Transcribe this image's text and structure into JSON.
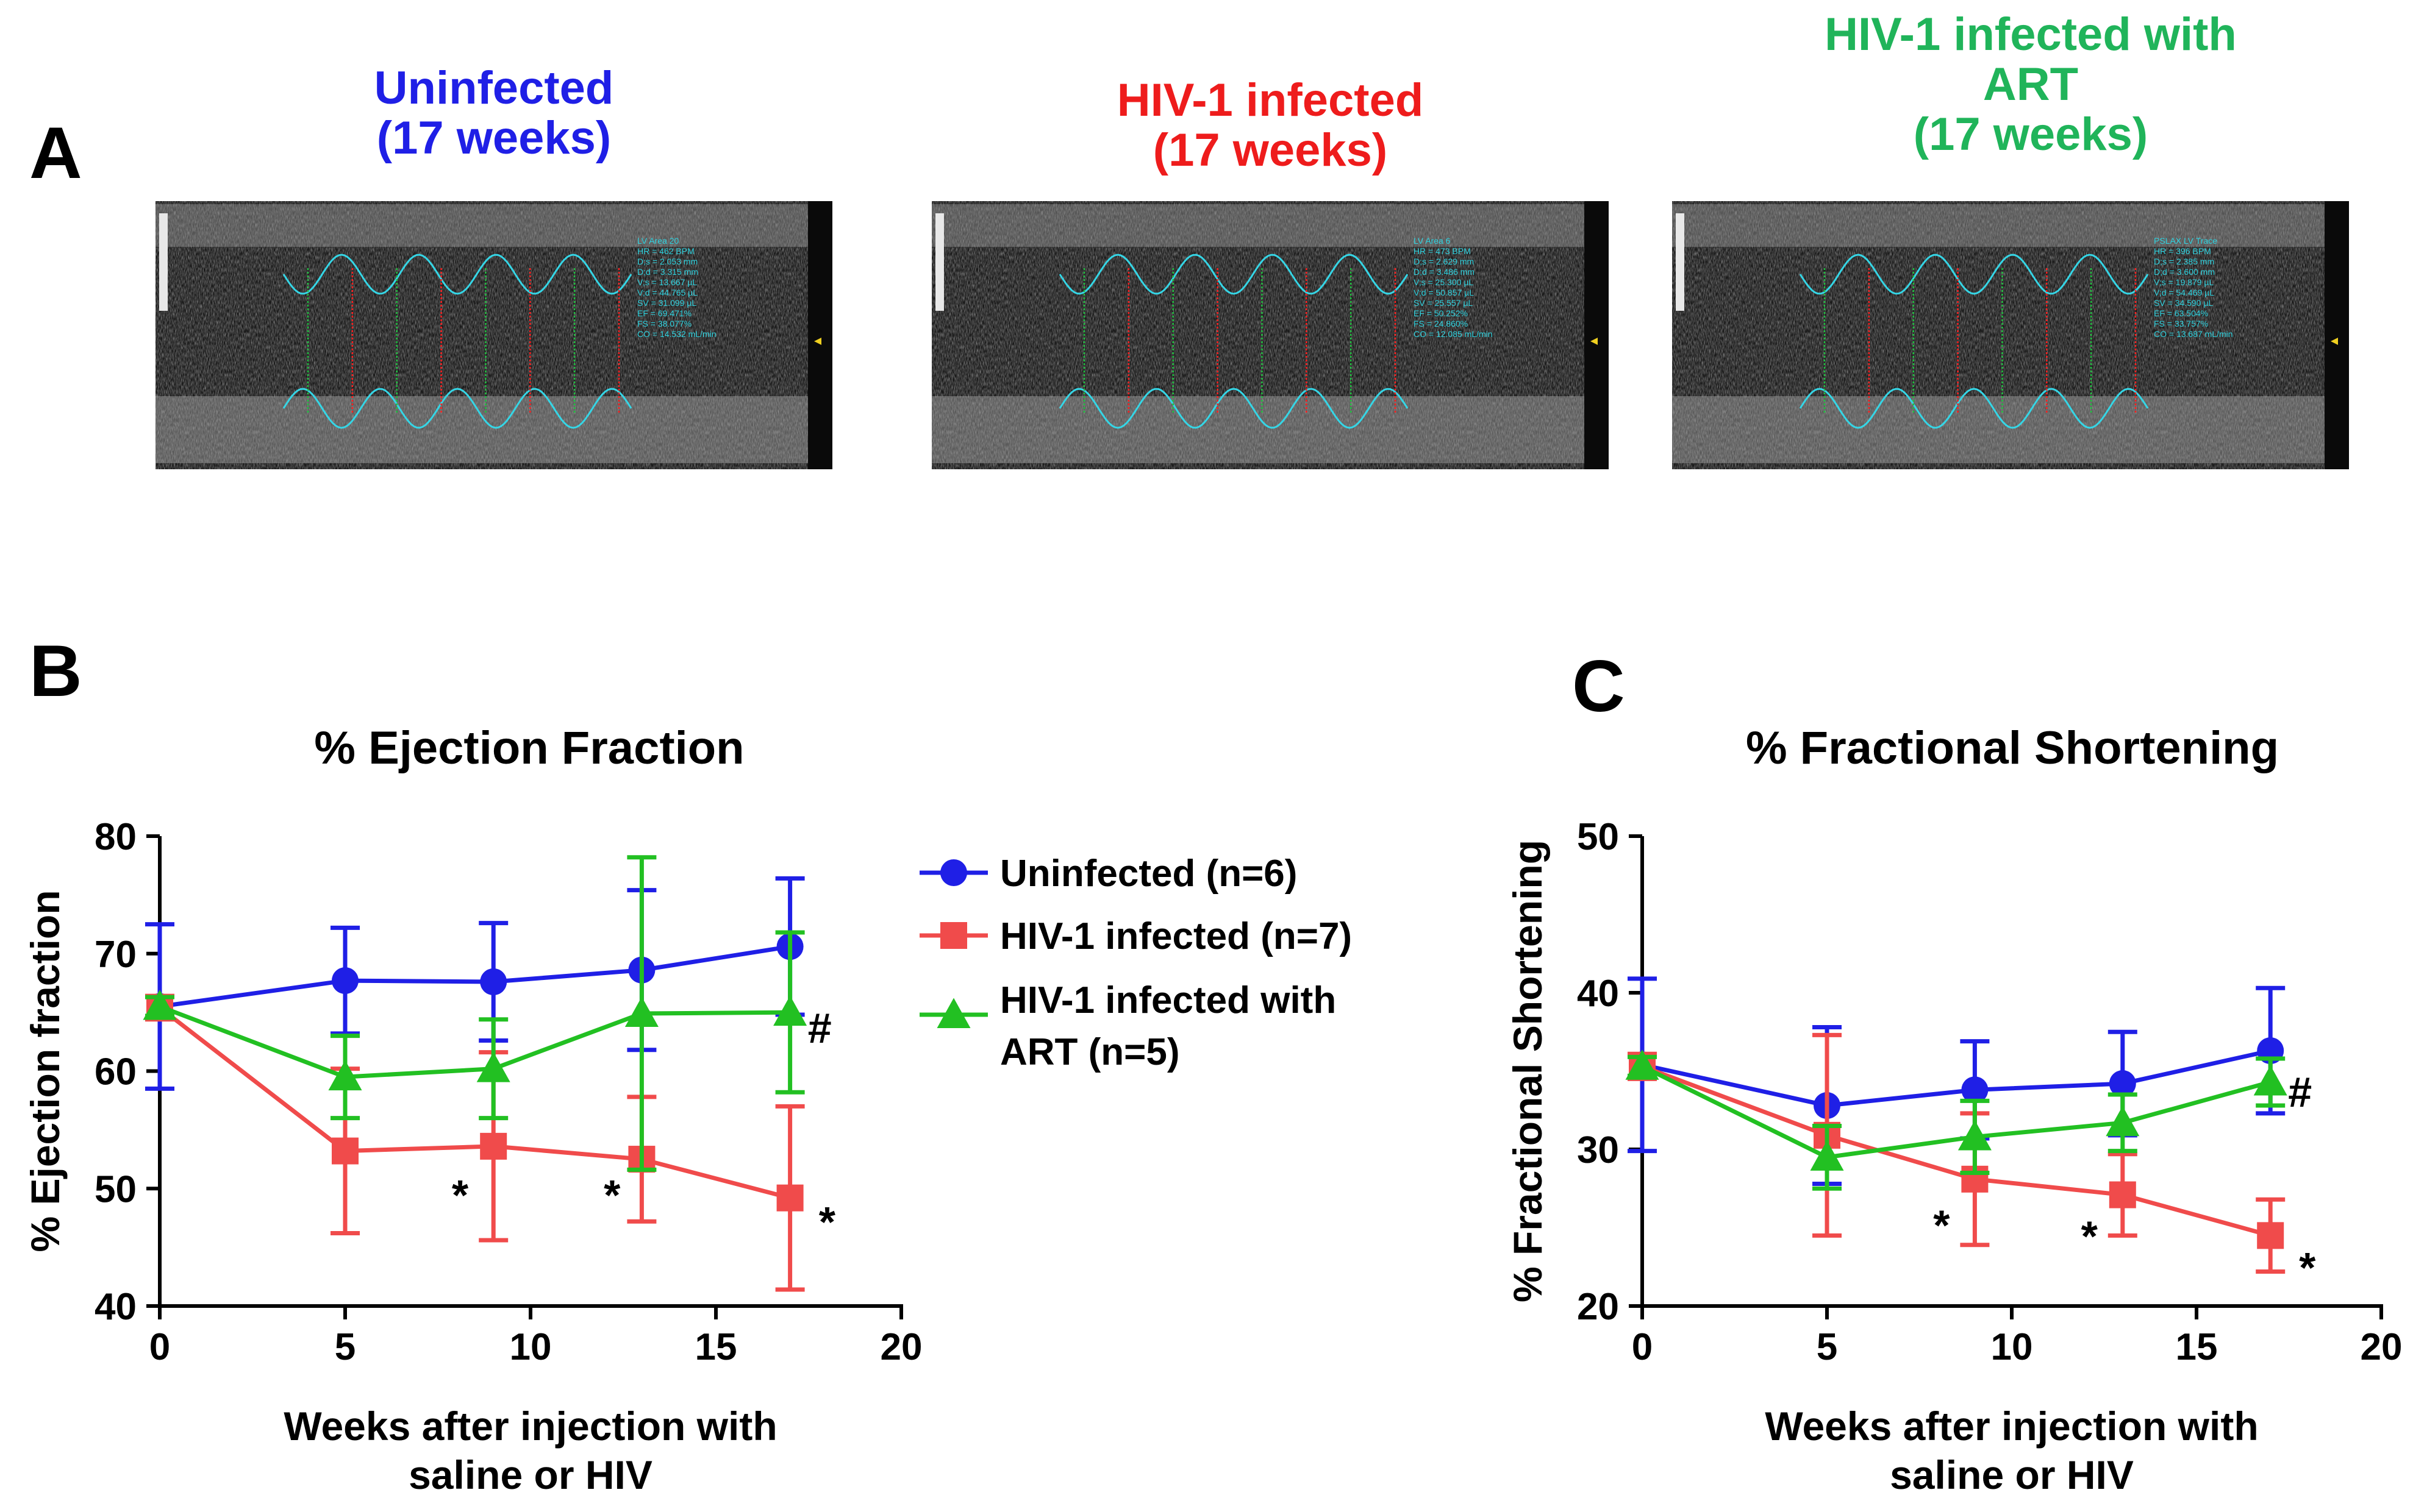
{
  "colors": {
    "uninfected": "#1f1fe6",
    "hiv": "#f04b4b",
    "art": "#22c022",
    "title_uninfected": "#1f1fe6",
    "title_hiv": "#ee1c1c",
    "title_art": "#20b45a",
    "echo_trace": "#35d6e6",
    "echo_red": "#ff2020",
    "echo_green": "#20c040"
  },
  "panel_a": {
    "letter": "A",
    "images": [
      {
        "title_lines": [
          "Uninfected",
          "(17 weeks)"
        ],
        "color_key": "title_uninfected",
        "measurements": [
          "LV Area 20",
          "HR = 462 BPM",
          "D;s = 2.053 mm",
          "D;d = 3.315 mm",
          "V;s = 13.667 µL",
          "V;d = 44.765 µL",
          "SV = 31.099 µL",
          "EF = 69.471%",
          "FS = 38.077%",
          "CO = 14.532 mL/min"
        ]
      },
      {
        "title_lines": [
          "HIV-1 infected",
          "(17 weeks)"
        ],
        "color_key": "title_hiv",
        "measurements": [
          "LV Area 6",
          "HR = 473 BPM",
          "D;s = 2.629 mm",
          "D;d = 3.486 mm",
          "V;s = 25.300 µL",
          "V;d = 50.857 µL",
          "SV = 25.557 µL",
          "EF = 50.252%",
          "FS = 24.860%",
          "CO = 12.085 mL/min"
        ]
      },
      {
        "title_lines": [
          "HIV-1 infected with",
          "ART",
          "(17 weeks)"
        ],
        "color_key": "title_art",
        "measurements": [
          "PSLAX LV Trace",
          "HR = 396 BPM",
          "D;s = 2.385 mm",
          "D;d = 3.600 mm",
          "V;s = 19.879 µL",
          "V;d = 54.469 µL",
          "SV = 34.590 µL",
          "EF = 63.504%",
          "FS = 33.757%",
          "CO = 13.687 mL/min"
        ]
      }
    ]
  },
  "legend": {
    "items": [
      {
        "label": [
          "Uninfected (n=6)"
        ],
        "marker": "circle",
        "color_key": "uninfected"
      },
      {
        "label": [
          "HIV-1 infected (n=7)"
        ],
        "marker": "square",
        "color_key": "hiv"
      },
      {
        "label": [
          "HIV-1 infected with",
          "ART (n=5)"
        ],
        "marker": "triangle",
        "color_key": "art"
      }
    ]
  },
  "chart_data": [
    {
      "panel": "B",
      "type": "line",
      "title": "% Ejection Fraction",
      "ylabel": "% Ejection fraction",
      "xlabel": [
        "Weeks after injection with",
        "saline or HIV"
      ],
      "xlim": [
        0,
        20
      ],
      "ylim": [
        40,
        80
      ],
      "xticks": [
        0,
        5,
        10,
        15,
        20
      ],
      "yticks": [
        40,
        50,
        60,
        70,
        80
      ],
      "x": [
        0,
        5,
        9,
        13,
        17
      ],
      "series": [
        {
          "name": "Uninfected (n=6)",
          "marker": "circle",
          "color_key": "uninfected",
          "values": [
            65.5,
            67.7,
            67.6,
            68.6,
            70.6
          ],
          "err": [
            7.0,
            4.5,
            5.0,
            6.8,
            5.8
          ]
        },
        {
          "name": "HIV-1 infected (n=7)",
          "marker": "square",
          "color_key": "hiv",
          "values": [
            65.4,
            53.2,
            53.6,
            52.5,
            49.2
          ],
          "err": [
            1.0,
            7.0,
            8.0,
            5.3,
            7.8
          ]
        },
        {
          "name": "HIV-1 infected with ART (n=5)",
          "marker": "triangle",
          "color_key": "art",
          "values": [
            65.5,
            59.5,
            60.2,
            64.9,
            65.0
          ],
          "err": [
            0.8,
            3.5,
            4.2,
            13.3,
            6.8
          ]
        }
      ],
      "annotations": [
        {
          "text": "*",
          "x": 8.1,
          "y": 49.5
        },
        {
          "text": "*",
          "x": 12.2,
          "y": 49.5
        },
        {
          "text": "*",
          "x": 18.0,
          "y": 47.2
        },
        {
          "text": "#",
          "x": 17.8,
          "y": 63.7
        }
      ]
    },
    {
      "panel": "C",
      "type": "line",
      "title": "% Fractional Shortening",
      "ylabel": "% Fractional Shortening",
      "xlabel": [
        "Weeks after injection with",
        "saline or HIV"
      ],
      "xlim": [
        0,
        20
      ],
      "ylim": [
        20,
        50
      ],
      "xticks": [
        0,
        5,
        10,
        15,
        20
      ],
      "yticks": [
        20,
        30,
        40,
        50
      ],
      "x": [
        0,
        5,
        9,
        13,
        17
      ],
      "series": [
        {
          "name": "Uninfected (n=6)",
          "marker": "circle",
          "color_key": "uninfected",
          "values": [
            35.4,
            32.8,
            33.8,
            34.2,
            36.3
          ],
          "err": [
            5.5,
            5.0,
            3.1,
            3.3,
            4.0
          ]
        },
        {
          "name": "HIV-1 infected (n=7)",
          "marker": "square",
          "color_key": "hiv",
          "values": [
            35.3,
            30.9,
            28.1,
            27.1,
            24.5
          ],
          "err": [
            0.8,
            6.4,
            4.2,
            2.6,
            2.3
          ]
        },
        {
          "name": "HIV-1 infected with ART (n=5)",
          "marker": "triangle",
          "color_key": "art",
          "values": [
            35.3,
            29.5,
            30.8,
            31.7,
            34.3
          ],
          "err": [
            0.6,
            2.0,
            2.3,
            1.8,
            1.5
          ]
        }
      ],
      "annotations": [
        {
          "text": "*",
          "x": 8.1,
          "y": 25.2
        },
        {
          "text": "*",
          "x": 12.1,
          "y": 24.5
        },
        {
          "text": "*",
          "x": 18.0,
          "y": 22.5
        },
        {
          "text": "#",
          "x": 17.8,
          "y": 33.7
        }
      ]
    }
  ]
}
